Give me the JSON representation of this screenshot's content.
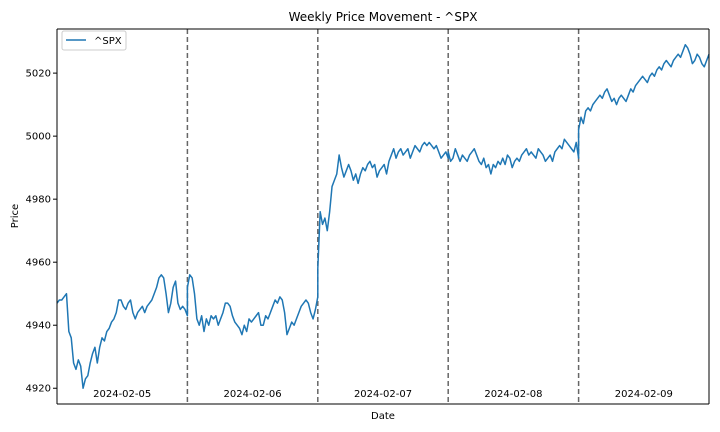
{
  "chart_data": {
    "type": "line",
    "title": "Weekly Price Movement - ^SPX",
    "xlabel": "Date",
    "ylabel": "Price",
    "ylim": [
      4915,
      5034
    ],
    "yticks": [
      4920,
      4940,
      4960,
      4980,
      5000,
      5020
    ],
    "legend": {
      "placement": "top-left",
      "entries": [
        "^SPX"
      ]
    },
    "grid": false,
    "line_color": "#1f77b4",
    "separator_color": "#666666",
    "x_session_labels": [
      "2024-02-05",
      "2024-02-06",
      "2024-02-07",
      "2024-02-08",
      "2024-02-09"
    ],
    "series": [
      {
        "name": "^SPX",
        "sessions": [
          {
            "date": "2024-02-05",
            "values": [
              4947,
              4948,
              4948,
              4949,
              4950,
              4938,
              4936,
              4928,
              4926,
              4929,
              4927,
              4920,
              4923,
              4924,
              4928,
              4931,
              4933,
              4928,
              4933,
              4936,
              4935,
              4938,
              4939,
              4941,
              4942,
              4944,
              4948,
              4948,
              4946,
              4945,
              4947,
              4948,
              4944,
              4942,
              4944,
              4945,
              4946,
              4944,
              4946,
              4947,
              4948,
              4950,
              4952,
              4955,
              4956,
              4955,
              4950,
              4944,
              4947,
              4952,
              4954,
              4947,
              4945,
              4946,
              4945,
              4943
            ]
          },
          {
            "date": "2024-02-06",
            "values": [
              4952,
              4956,
              4955,
              4950,
              4942,
              4940,
              4943,
              4938,
              4942,
              4940,
              4943,
              4942,
              4943,
              4940,
              4942,
              4944,
              4947,
              4947,
              4946,
              4943,
              4941,
              4940,
              4939,
              4937,
              4940,
              4938,
              4942,
              4941,
              4942,
              4943,
              4944,
              4940,
              4940,
              4943,
              4942,
              4944,
              4946,
              4948,
              4947,
              4949,
              4948,
              4944,
              4937,
              4939,
              4941,
              4940,
              4942,
              4944,
              4946,
              4947,
              4948,
              4947,
              4944,
              4942,
              4945,
              4949
            ]
          },
          {
            "date": "2024-02-07",
            "values": [
              4958,
              4976,
              4972,
              4974,
              4970,
              4976,
              4984,
              4986,
              4988,
              4994,
              4990,
              4987,
              4989,
              4991,
              4989,
              4986,
              4988,
              4985,
              4988,
              4990,
              4989,
              4991,
              4992,
              4990,
              4991,
              4987,
              4989,
              4990,
              4991,
              4988,
              4992,
              4994,
              4996,
              4993,
              4995,
              4996,
              4994,
              4995,
              4996,
              4993,
              4995,
              4997,
              4996,
              4995,
              4997,
              4998,
              4997,
              4998,
              4997,
              4996,
              4997,
              4995,
              4993,
              4994,
              4995,
              4993
            ]
          },
          {
            "date": "2024-02-08",
            "values": [
              4995,
              4992,
              4993,
              4996,
              4994,
              4992,
              4994,
              4993,
              4992,
              4994,
              4995,
              4996,
              4994,
              4992,
              4991,
              4993,
              4990,
              4991,
              4988,
              4991,
              4990,
              4992,
              4991,
              4993,
              4991,
              4994,
              4993,
              4990,
              4992,
              4993,
              4992,
              4994,
              4995,
              4996,
              4994,
              4995,
              4994,
              4993,
              4996,
              4995,
              4994,
              4992,
              4993,
              4994,
              4992,
              4995,
              4996,
              4997,
              4996,
              4999,
              4998,
              4997,
              4996,
              4995,
              4998,
              4993
            ]
          },
          {
            "date": "2024-02-09",
            "values": [
              5002,
              5006,
              5004,
              5008,
              5009,
              5008,
              5010,
              5011,
              5012,
              5013,
              5012,
              5014,
              5015,
              5013,
              5011,
              5012,
              5010,
              5012,
              5013,
              5012,
              5011,
              5013,
              5015,
              5014,
              5016,
              5017,
              5018,
              5019,
              5018,
              5017,
              5019,
              5020,
              5019,
              5021,
              5022,
              5021,
              5023,
              5024,
              5023,
              5022,
              5024,
              5025,
              5026,
              5025,
              5027,
              5029,
              5028,
              5026,
              5023,
              5024,
              5026,
              5025,
              5023,
              5022,
              5024,
              5026
            ]
          }
        ]
      }
    ]
  }
}
